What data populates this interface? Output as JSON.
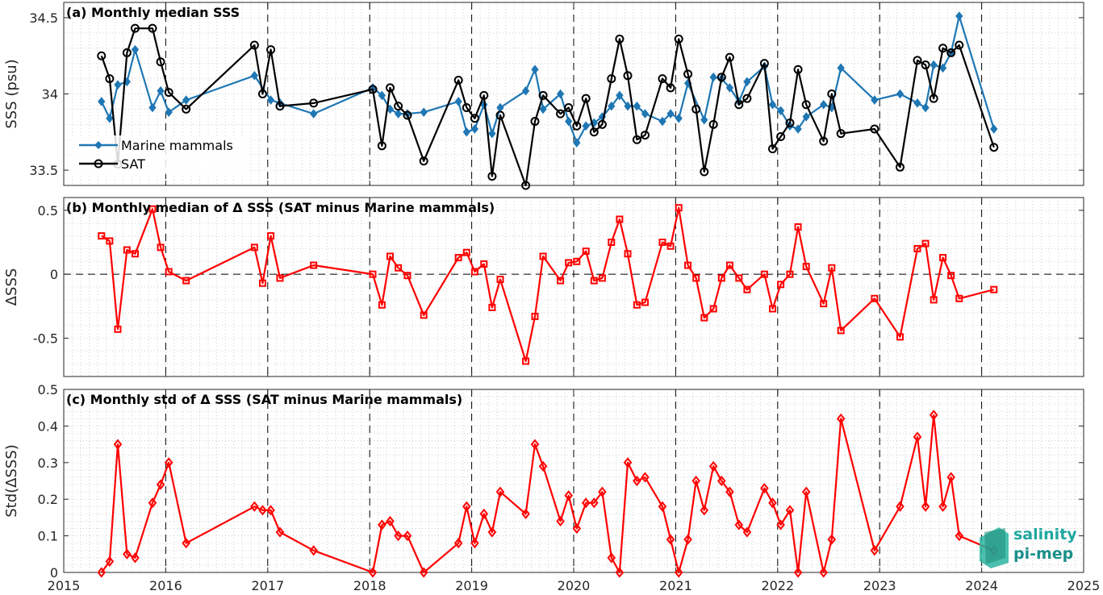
{
  "chart_data": [
    {
      "type": "line",
      "title": "(a) Monthly median SSS",
      "ylabel": "SSS (psu)",
      "xlim": [
        2015,
        2025
      ],
      "ylim": [
        33.4,
        34.6
      ],
      "yticks": [
        33.5,
        34,
        34.5
      ],
      "ytick_labels": [
        "33.5",
        "34",
        "34.5"
      ],
      "legend_position": "left",
      "series": [
        {
          "name": "Marine mammals",
          "color": "#1f77b4",
          "marker": "diamond",
          "x": [
            2015.37,
            2015.45,
            2015.53,
            2015.62,
            2015.7,
            2015.87,
            2015.95,
            2016.03,
            2016.2,
            2016.87,
            2017.03,
            2017.12,
            2017.45,
            2018.03,
            2018.12,
            2018.2,
            2018.28,
            2018.37,
            2018.53,
            2018.87,
            2018.95,
            2019.03,
            2019.12,
            2019.2,
            2019.28,
            2019.53,
            2019.62,
            2019.7,
            2019.87,
            2019.95,
            2020.03,
            2020.12,
            2020.2,
            2020.28,
            2020.37,
            2020.45,
            2020.53,
            2020.62,
            2020.7,
            2020.87,
            2020.95,
            2021.03,
            2021.12,
            2021.28,
            2021.37,
            2021.45,
            2021.53,
            2021.62,
            2021.7,
            2021.87,
            2021.95,
            2022.03,
            2022.12,
            2022.2,
            2022.28,
            2022.45,
            2022.53,
            2022.62,
            2022.95,
            2023.2,
            2023.37,
            2023.45,
            2023.53,
            2023.62,
            2023.7,
            2023.78,
            2024.12
          ],
          "y": [
            33.95,
            33.84,
            34.06,
            34.08,
            34.29,
            33.91,
            34.02,
            33.88,
            33.96,
            34.12,
            33.96,
            33.94,
            33.87,
            34.04,
            33.99,
            33.9,
            33.87,
            33.87,
            33.88,
            33.95,
            33.75,
            33.77,
            33.93,
            33.74,
            33.91,
            34.02,
            34.16,
            33.9,
            34.0,
            33.82,
            33.68,
            33.79,
            33.81,
            33.85,
            33.92,
            33.99,
            33.92,
            33.92,
            33.87,
            33.82,
            33.87,
            33.84,
            34.07,
            33.83,
            34.11,
            34.1,
            34.04,
            33.95,
            34.08,
            34.18,
            33.93,
            33.89,
            33.79,
            33.77,
            33.85,
            33.93,
            33.91,
            34.17,
            33.96,
            34.0,
            33.94,
            33.91,
            34.19,
            34.17,
            34.27,
            34.51,
            33.77
          ]
        },
        {
          "name": "SAT",
          "color": "#000000",
          "marker": "circle",
          "x": [
            2015.37,
            2015.45,
            2015.53,
            2015.62,
            2015.7,
            2015.87,
            2015.95,
            2016.03,
            2016.2,
            2016.87,
            2016.95,
            2017.03,
            2017.12,
            2017.45,
            2018.03,
            2018.12,
            2018.2,
            2018.28,
            2018.37,
            2018.53,
            2018.87,
            2018.95,
            2019.03,
            2019.12,
            2019.2,
            2019.28,
            2019.53,
            2019.62,
            2019.7,
            2019.87,
            2019.95,
            2020.03,
            2020.12,
            2020.2,
            2020.28,
            2020.37,
            2020.45,
            2020.53,
            2020.62,
            2020.7,
            2020.87,
            2020.95,
            2021.03,
            2021.12,
            2021.2,
            2021.28,
            2021.37,
            2021.45,
            2021.53,
            2021.62,
            2021.7,
            2021.87,
            2021.95,
            2022.03,
            2022.12,
            2022.2,
            2022.28,
            2022.45,
            2022.53,
            2022.62,
            2022.95,
            2023.2,
            2023.37,
            2023.45,
            2023.53,
            2023.62,
            2023.7,
            2023.78,
            2024.12
          ],
          "y": [
            34.25,
            34.1,
            33.54,
            34.27,
            34.43,
            34.43,
            34.21,
            34.01,
            33.9,
            34.32,
            34.0,
            34.29,
            33.92,
            33.94,
            34.03,
            33.66,
            34.04,
            33.92,
            33.86,
            33.56,
            34.09,
            33.91,
            33.84,
            33.99,
            33.46,
            33.86,
            33.4,
            33.82,
            33.99,
            33.87,
            33.91,
            33.79,
            33.97,
            33.75,
            33.8,
            34.1,
            34.36,
            34.12,
            33.7,
            33.73,
            34.1,
            34.04,
            34.36,
            34.13,
            33.9,
            33.49,
            33.8,
            34.11,
            34.24,
            33.93,
            33.97,
            34.2,
            33.64,
            33.72,
            33.81,
            34.16,
            33.93,
            33.69,
            34.0,
            33.74,
            33.77,
            33.52,
            34.22,
            34.19,
            33.97,
            34.3,
            34.27,
            34.32,
            33.65
          ]
        }
      ]
    },
    {
      "type": "line",
      "title": "(b) Monthly median of Δ SSS (SAT minus Marine mammals)",
      "ylabel": "ΔSSS",
      "xlim": [
        2015,
        2025
      ],
      "ylim": [
        -0.8,
        0.6
      ],
      "yticks": [
        -0.5,
        0,
        0.5
      ],
      "ytick_labels": [
        "-0.5",
        "0",
        "0.5"
      ],
      "zero_line": true,
      "series": [
        {
          "name": "",
          "color": "#ff0000",
          "marker": "square",
          "x": [
            2015.37,
            2015.45,
            2015.53,
            2015.62,
            2015.7,
            2015.87,
            2015.95,
            2016.03,
            2016.2,
            2016.87,
            2016.95,
            2017.03,
            2017.12,
            2017.45,
            2018.03,
            2018.12,
            2018.2,
            2018.28,
            2018.37,
            2018.53,
            2018.87,
            2018.95,
            2019.03,
            2019.12,
            2019.2,
            2019.28,
            2019.53,
            2019.62,
            2019.7,
            2019.87,
            2019.95,
            2020.03,
            2020.12,
            2020.2,
            2020.28,
            2020.37,
            2020.45,
            2020.53,
            2020.62,
            2020.7,
            2020.87,
            2020.95,
            2021.03,
            2021.12,
            2021.2,
            2021.28,
            2021.37,
            2021.45,
            2021.53,
            2021.62,
            2021.7,
            2021.87,
            2021.95,
            2022.03,
            2022.12,
            2022.2,
            2022.28,
            2022.45,
            2022.53,
            2022.62,
            2022.95,
            2023.2,
            2023.37,
            2023.45,
            2023.53,
            2023.62,
            2023.7,
            2023.78,
            2024.12
          ],
          "y": [
            0.3,
            0.26,
            -0.43,
            0.19,
            0.16,
            0.51,
            0.21,
            0.02,
            -0.05,
            0.21,
            -0.07,
            0.3,
            -0.03,
            0.07,
            0.0,
            -0.24,
            0.14,
            0.05,
            -0.01,
            -0.32,
            0.13,
            0.17,
            0.02,
            0.08,
            -0.26,
            -0.04,
            -0.68,
            -0.33,
            0.14,
            -0.05,
            0.09,
            0.1,
            0.18,
            -0.05,
            -0.03,
            0.25,
            0.43,
            0.16,
            -0.24,
            -0.22,
            0.25,
            0.22,
            0.52,
            0.07,
            -0.03,
            -0.34,
            -0.27,
            -0.03,
            0.07,
            -0.03,
            -0.12,
            0.0,
            -0.27,
            -0.08,
            0.0,
            0.37,
            0.06,
            -0.23,
            0.05,
            -0.44,
            -0.19,
            -0.49,
            0.2,
            0.24,
            -0.2,
            0.13,
            -0.01,
            -0.19,
            -0.12
          ]
        }
      ]
    },
    {
      "type": "line",
      "title": "(c) Monthly std of Δ SSS (SAT minus Marine mammals)",
      "ylabel": "Std(ΔSSS)",
      "xlim": [
        2015,
        2025
      ],
      "ylim": [
        0,
        0.5
      ],
      "yticks": [
        0,
        0.1,
        0.2,
        0.3,
        0.4,
        0.5
      ],
      "ytick_labels": [
        "0",
        "0.1",
        "0.2",
        "0.3",
        "0.4",
        "0.5"
      ],
      "xticks": [
        2015,
        2016,
        2017,
        2018,
        2019,
        2020,
        2021,
        2022,
        2023,
        2024,
        2025
      ],
      "xtick_labels": [
        "2015",
        "2016",
        "2017",
        "2018",
        "2019",
        "2020",
        "2021",
        "2022",
        "2023",
        "2024",
        "2025"
      ],
      "series": [
        {
          "name": "",
          "color": "#ff0000",
          "marker": "diamond",
          "x": [
            2015.37,
            2015.45,
            2015.53,
            2015.62,
            2015.7,
            2015.87,
            2015.95,
            2016.03,
            2016.2,
            2016.87,
            2016.95,
            2017.03,
            2017.12,
            2017.45,
            2018.03,
            2018.12,
            2018.2,
            2018.28,
            2018.37,
            2018.53,
            2018.87,
            2018.95,
            2019.03,
            2019.12,
            2019.2,
            2019.28,
            2019.53,
            2019.62,
            2019.7,
            2019.87,
            2019.95,
            2020.03,
            2020.12,
            2020.2,
            2020.28,
            2020.37,
            2020.45,
            2020.53,
            2020.62,
            2020.7,
            2020.87,
            2020.95,
            2021.03,
            2021.12,
            2021.2,
            2021.28,
            2021.37,
            2021.45,
            2021.53,
            2021.62,
            2021.7,
            2021.87,
            2021.95,
            2022.03,
            2022.12,
            2022.2,
            2022.28,
            2022.45,
            2022.53,
            2022.62,
            2022.95,
            2023.2,
            2023.37,
            2023.45,
            2023.53,
            2023.62,
            2023.7,
            2023.78,
            2024.12
          ],
          "y": [
            0.0,
            0.03,
            0.35,
            0.05,
            0.04,
            0.19,
            0.24,
            0.3,
            0.08,
            0.18,
            0.17,
            0.17,
            0.11,
            0.06,
            0.0,
            0.13,
            0.14,
            0.1,
            0.1,
            0.0,
            0.08,
            0.18,
            0.08,
            0.16,
            0.11,
            0.22,
            0.16,
            0.35,
            0.29,
            0.14,
            0.21,
            0.12,
            0.19,
            0.19,
            0.22,
            0.04,
            0.0,
            0.3,
            0.25,
            0.26,
            0.18,
            0.09,
            0.0,
            0.09,
            0.25,
            0.17,
            0.29,
            0.25,
            0.22,
            0.13,
            0.11,
            0.23,
            0.19,
            0.13,
            0.17,
            0.0,
            0.22,
            0.0,
            0.09,
            0.42,
            0.06,
            0.18,
            0.37,
            0.18,
            0.43,
            0.18,
            0.26,
            0.1,
            0.06
          ]
        }
      ]
    }
  ],
  "logo": {
    "line1": "salinity",
    "line2": "pi-mep",
    "color": "#1fa7a0"
  }
}
